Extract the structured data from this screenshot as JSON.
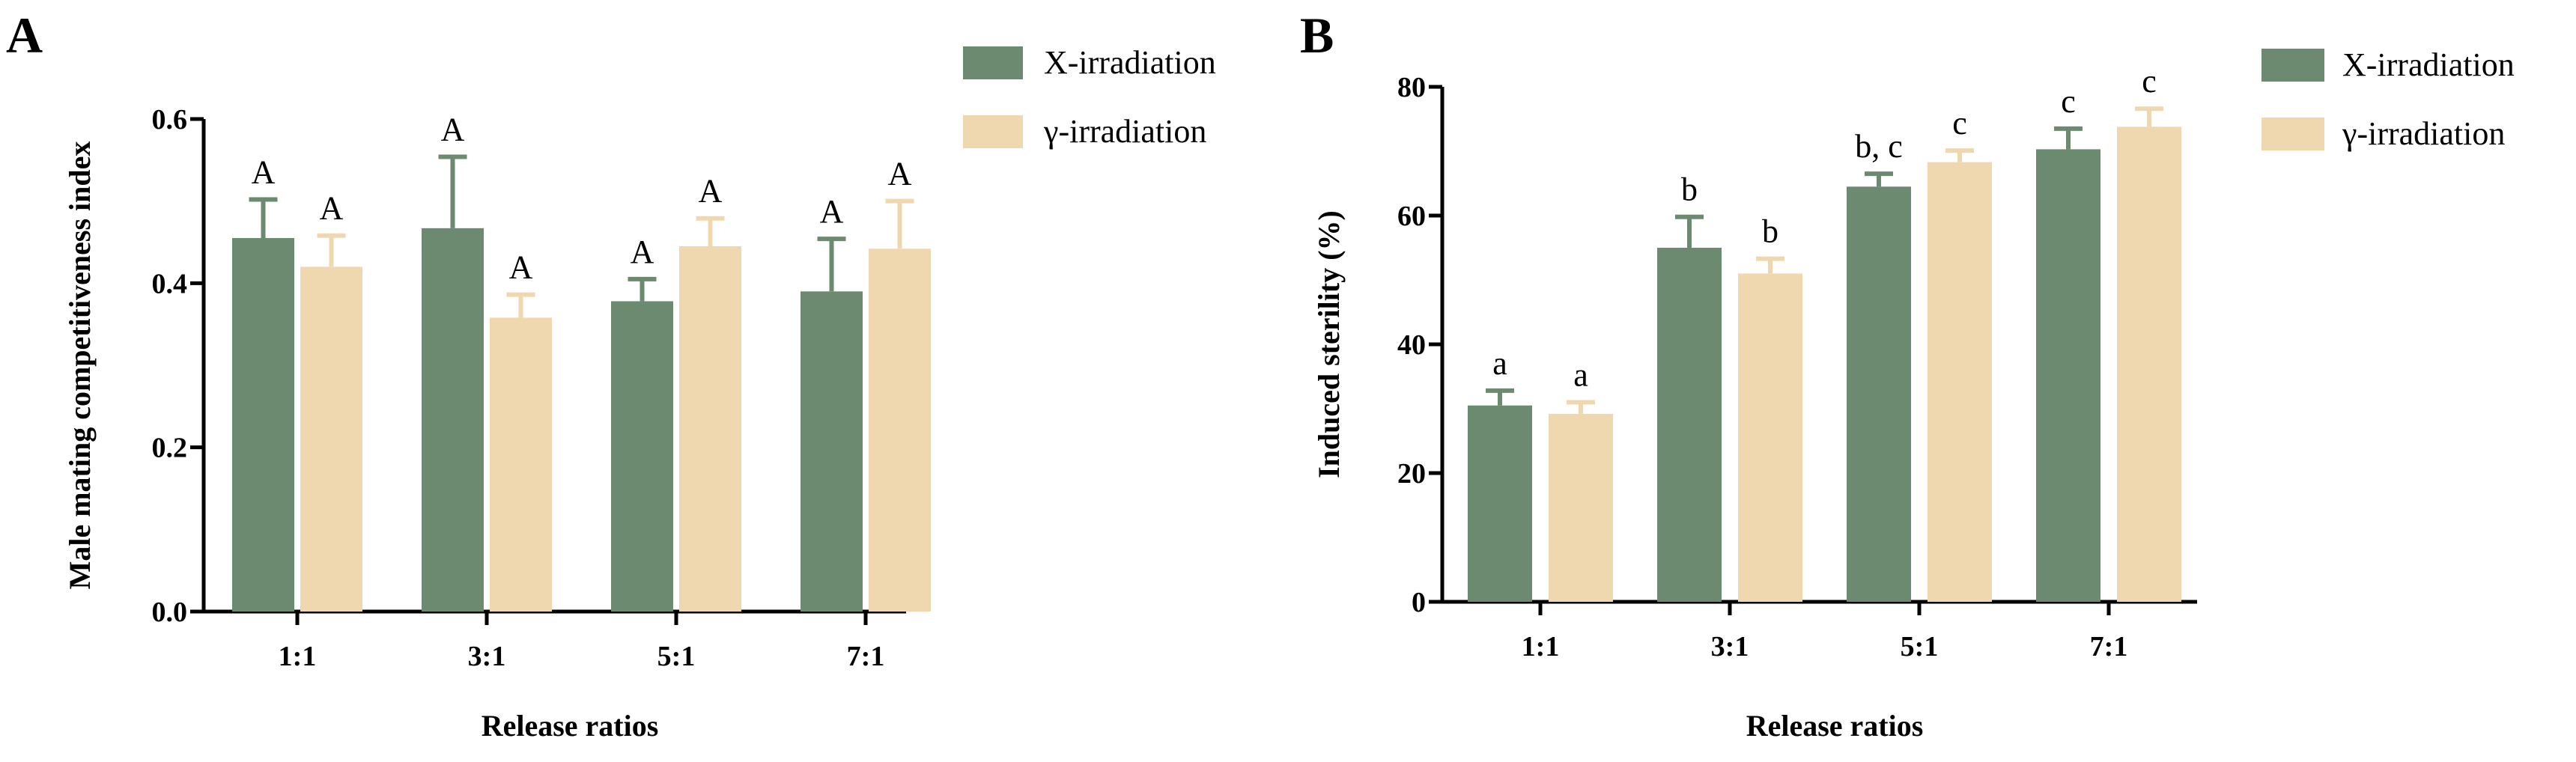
{
  "colors": {
    "x_irradiation": "#6b8a6f",
    "gamma_irradiation": "#efd8b0",
    "axis": "#000000"
  },
  "chart_data": [
    {
      "panel": "A",
      "type": "bar",
      "xlabel": "Release ratios",
      "ylabel": "Male mating competitiveness index",
      "ylim": [
        0,
        0.6
      ],
      "yticks": [
        0.0,
        0.2,
        0.4,
        0.6
      ],
      "ytick_labels": [
        "0.0",
        "0.2",
        "0.4",
        "0.6"
      ],
      "categories": [
        "1:1",
        "3:1",
        "5:1",
        "7:1"
      ],
      "legend_position": "top-right",
      "series": [
        {
          "name": "X-irradiation",
          "values": [
            0.455,
            0.467,
            0.378,
            0.39
          ],
          "errors": [
            0.047,
            0.087,
            0.027,
            0.064
          ],
          "labels": [
            "A",
            "A",
            "A",
            "A"
          ]
        },
        {
          "name": "γ-irradiation",
          "values": [
            0.42,
            0.358,
            0.445,
            0.442
          ],
          "errors": [
            0.038,
            0.028,
            0.034,
            0.058
          ],
          "labels": [
            "A",
            "A",
            "A",
            "A"
          ]
        }
      ]
    },
    {
      "panel": "B",
      "type": "bar",
      "xlabel": "Release ratios",
      "ylabel": "Induced sterility (%)",
      "ylim": [
        0,
        80
      ],
      "yticks": [
        0,
        20,
        40,
        60,
        80
      ],
      "ytick_labels": [
        "0",
        "20",
        "40",
        "60",
        "80"
      ],
      "categories": [
        "1:1",
        "3:1",
        "5:1",
        "7:1"
      ],
      "legend_position": "top-right",
      "series": [
        {
          "name": "X-irradiation",
          "values": [
            30.5,
            55,
            64.5,
            70.3
          ],
          "errors": [
            2.3,
            4.8,
            2.0,
            3.2
          ],
          "labels": [
            "a",
            "b",
            "b, c",
            "c"
          ]
        },
        {
          "name": "γ-irradiation",
          "values": [
            29.2,
            51,
            68.3,
            73.8
          ],
          "errors": [
            1.8,
            2.3,
            1.8,
            2.8
          ],
          "labels": [
            "a",
            "b",
            "c",
            "c"
          ]
        }
      ]
    }
  ]
}
